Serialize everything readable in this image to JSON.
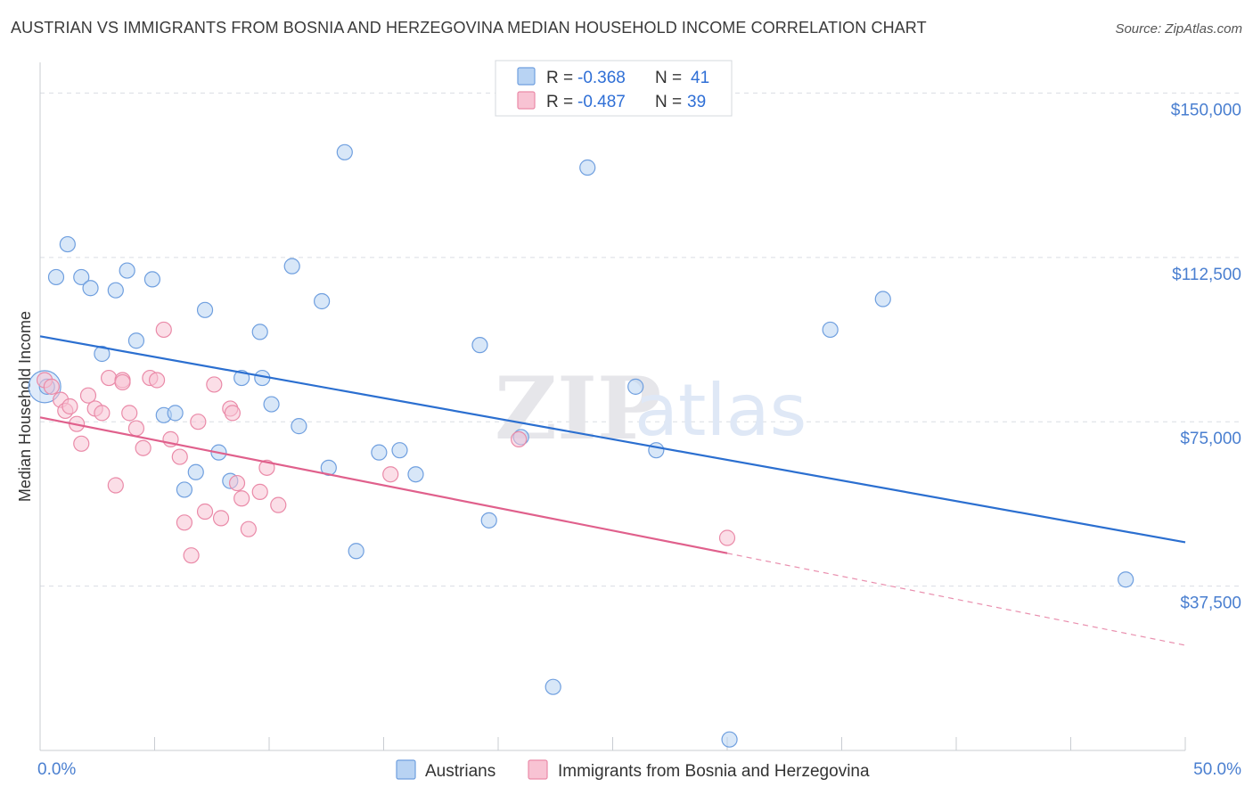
{
  "title": "AUSTRIAN VS IMMIGRANTS FROM BOSNIA AND HERZEGOVINA MEDIAN HOUSEHOLD INCOME CORRELATION CHART",
  "source": "Source: ZipAtlas.com",
  "watermark": {
    "zip": "ZIP",
    "atlas": "atlas"
  },
  "colors": {
    "blue_fill": "#b8d3f3",
    "blue_stroke": "#6f9fdf",
    "blue_line": "#2b6fd0",
    "pink_fill": "#f8c3d3",
    "pink_stroke": "#ea8aa8",
    "pink_line": "#e0608c",
    "grid": "#d9dde3",
    "tick_text": "#4a7fd0"
  },
  "legend": {
    "rows": [
      {
        "r_label": "R =",
        "r_value": "-0.368",
        "n_label": "N =",
        "n_value": "41"
      },
      {
        "r_label": "R =",
        "r_value": "-0.487",
        "n_label": "N =",
        "n_value": "39"
      }
    ]
  },
  "chart_data": {
    "type": "scatter",
    "ylabel": "Median Household Income",
    "xlabel": "",
    "xlim": [
      0,
      50
    ],
    "ylim": [
      0,
      157000
    ],
    "x_tick_labels": [
      "0.0%",
      "50.0%"
    ],
    "y_ticks": [
      {
        "value": 150000,
        "label": "$150,000"
      },
      {
        "value": 112500,
        "label": "$112,500"
      },
      {
        "value": 75000,
        "label": "$75,000"
      },
      {
        "value": 37500,
        "label": "$37,500"
      }
    ],
    "grid": true,
    "legend_position": "top-center",
    "series": [
      {
        "name": "Austrians",
        "color": "#b8d3f3",
        "trend": {
          "x0": 0,
          "y0": 94500,
          "x1": 50,
          "y1": 47500,
          "dashed_from": null
        },
        "points": [
          [
            0.3,
            83000
          ],
          [
            0.7,
            108000
          ],
          [
            1.2,
            115500
          ],
          [
            1.8,
            108000
          ],
          [
            2.2,
            105500
          ],
          [
            2.7,
            90500
          ],
          [
            3.3,
            105000
          ],
          [
            3.8,
            109500
          ],
          [
            4.2,
            93500
          ],
          [
            4.9,
            107500
          ],
          [
            5.4,
            76500
          ],
          [
            5.9,
            77000
          ],
          [
            6.3,
            59500
          ],
          [
            6.8,
            63500
          ],
          [
            7.2,
            100500
          ],
          [
            7.8,
            68000
          ],
          [
            8.3,
            61500
          ],
          [
            8.8,
            85000
          ],
          [
            9.6,
            95500
          ],
          [
            9.7,
            85000
          ],
          [
            10.1,
            79000
          ],
          [
            11.0,
            110500
          ],
          [
            11.3,
            74000
          ],
          [
            12.3,
            102500
          ],
          [
            12.6,
            64500
          ],
          [
            13.3,
            136500
          ],
          [
            13.8,
            45500
          ],
          [
            14.8,
            68000
          ],
          [
            15.7,
            68500
          ],
          [
            16.4,
            63000
          ],
          [
            19.2,
            92500
          ],
          [
            19.6,
            52500
          ],
          [
            21.0,
            71500
          ],
          [
            22.4,
            14500
          ],
          [
            23.9,
            133000
          ],
          [
            26.0,
            83000
          ],
          [
            26.9,
            68500
          ],
          [
            34.5,
            96000
          ],
          [
            36.8,
            103000
          ],
          [
            47.4,
            39000
          ],
          [
            30.1,
            2500
          ]
        ]
      },
      {
        "name": "Immigrants from Bosnia and Herzegovina",
        "color": "#f8c3d3",
        "trend": {
          "x0": 0,
          "y0": 76000,
          "x1": 30.0,
          "y1": 45000,
          "dashed_from": 30.0,
          "x2": 50,
          "y2": 24000
        },
        "points": [
          [
            0.2,
            84500
          ],
          [
            0.5,
            83000
          ],
          [
            0.9,
            80000
          ],
          [
            1.1,
            77500
          ],
          [
            1.3,
            78500
          ],
          [
            1.6,
            74500
          ],
          [
            1.8,
            70000
          ],
          [
            2.1,
            81000
          ],
          [
            2.4,
            78000
          ],
          [
            2.7,
            77000
          ],
          [
            3.0,
            85000
          ],
          [
            3.3,
            60500
          ],
          [
            3.6,
            84500
          ],
          [
            3.9,
            77000
          ],
          [
            4.2,
            73500
          ],
          [
            4.5,
            69000
          ],
          [
            4.8,
            85000
          ],
          [
            5.1,
            84500
          ],
          [
            5.4,
            96000
          ],
          [
            5.7,
            71000
          ],
          [
            6.1,
            67000
          ],
          [
            6.3,
            52000
          ],
          [
            6.6,
            44500
          ],
          [
            6.9,
            75000
          ],
          [
            7.2,
            54500
          ],
          [
            7.6,
            83500
          ],
          [
            7.9,
            53000
          ],
          [
            8.3,
            78000
          ],
          [
            8.6,
            61000
          ],
          [
            8.8,
            57500
          ],
          [
            9.1,
            50500
          ],
          [
            9.6,
            59000
          ],
          [
            9.9,
            64500
          ],
          [
            10.4,
            56000
          ],
          [
            8.4,
            77000
          ],
          [
            15.3,
            63000
          ],
          [
            20.9,
            71000
          ],
          [
            30.0,
            48500
          ],
          [
            3.6,
            84000
          ]
        ]
      }
    ]
  }
}
